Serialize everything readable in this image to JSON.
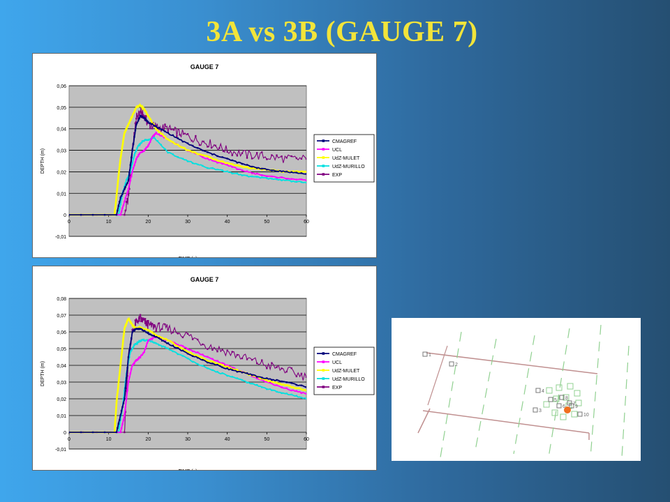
{
  "slide": {
    "title": "3A vs 3B   (GAUGE 7)"
  },
  "chart_data": [
    {
      "type": "line",
      "title": "GAUGE 7",
      "xlabel": "TIME (s)",
      "ylabel": "DEPTH (m)",
      "xlim": [
        0,
        60
      ],
      "ylim": [
        -0.01,
        0.06
      ],
      "xticks": [
        "0",
        "10",
        "20",
        "30",
        "40",
        "50",
        "60"
      ],
      "yticks": [
        "-0,01",
        "0",
        "0,01",
        "0,02",
        "0,03",
        "0,04",
        "0,05",
        "0,06"
      ],
      "grid": true,
      "legend": "right",
      "series": [
        {
          "name": "CMAGREF",
          "color": "#00007a",
          "marker": "+",
          "x": [
            0,
            12,
            13,
            14,
            15,
            16,
            17,
            18,
            19,
            20,
            22,
            25,
            30,
            35,
            40,
            45,
            50,
            55,
            60
          ],
          "y": [
            0,
            0,
            0.008,
            0.012,
            0.016,
            0.03,
            0.042,
            0.046,
            0.045,
            0.043,
            0.041,
            0.038,
            0.033,
            0.029,
            0.026,
            0.023,
            0.021,
            0.02,
            0.019
          ]
        },
        {
          "name": "UCL",
          "color": "#ff00ff",
          "marker": "s",
          "x": [
            0,
            13,
            14,
            15,
            16,
            17,
            18,
            19,
            20,
            21,
            22,
            25,
            30,
            35,
            40,
            45,
            50,
            55,
            60
          ],
          "y": [
            0,
            0,
            0.006,
            0.012,
            0.02,
            0.026,
            0.029,
            0.03,
            0.032,
            0.036,
            0.038,
            0.035,
            0.03,
            0.026,
            0.023,
            0.02,
            0.018,
            0.017,
            0.016
          ]
        },
        {
          "name": "UdZ-MULET",
          "color": "#ffff00",
          "marker": "^",
          "x": [
            0,
            11.5,
            12.5,
            13,
            14,
            15,
            16,
            17,
            18,
            19,
            20,
            22,
            25,
            30,
            35,
            40,
            45,
            50,
            55,
            60
          ],
          "y": [
            0,
            0,
            0.018,
            0.026,
            0.038,
            0.042,
            0.046,
            0.05,
            0.051,
            0.049,
            0.046,
            0.04,
            0.035,
            0.03,
            0.027,
            0.024,
            0.022,
            0.021,
            0.02,
            0.02
          ]
        },
        {
          "name": "UdZ-MURILLO",
          "color": "#00e0e0",
          "marker": "x",
          "x": [
            0,
            12.5,
            13.5,
            14.5,
            15.5,
            16.5,
            17.5,
            18.5,
            19.5,
            20.5,
            21.5,
            25,
            30,
            35,
            40,
            45,
            50,
            55,
            60
          ],
          "y": [
            0,
            0,
            0.01,
            0.016,
            0.02,
            0.028,
            0.032,
            0.034,
            0.035,
            0.035,
            0.036,
            0.029,
            0.025,
            0.022,
            0.02,
            0.018,
            0.017,
            0.016,
            0.015
          ]
        },
        {
          "name": "EXP",
          "color": "#800080",
          "marker": "|",
          "x": [
            0,
            14,
            15,
            16,
            17,
            18,
            19,
            20,
            22,
            25,
            28,
            32,
            36,
            40,
            45,
            50,
            55,
            60
          ],
          "y": [
            0,
            0,
            0.008,
            0.03,
            0.045,
            0.048,
            0.046,
            0.042,
            0.041,
            0.04,
            0.038,
            0.035,
            0.033,
            0.03,
            0.028,
            0.027,
            0.026,
            0.026
          ]
        }
      ]
    },
    {
      "type": "line",
      "title": "GAUGE 7",
      "xlabel": "TIME (s)",
      "ylabel": "DEPTH (m)",
      "xlim": [
        0,
        60
      ],
      "ylim": [
        -0.01,
        0.08
      ],
      "xticks": [
        "0",
        "10",
        "20",
        "30",
        "40",
        "50",
        "60"
      ],
      "yticks": [
        "-0,01",
        "0",
        "0,01",
        "0,02",
        "0,03",
        "0,04",
        "0,05",
        "0,06",
        "0,07",
        "0,08"
      ],
      "grid": true,
      "legend": "right",
      "series": [
        {
          "name": "CMAGREF",
          "color": "#00007a",
          "marker": "+",
          "x": [
            0,
            12,
            13,
            14,
            15,
            16,
            17,
            18,
            20,
            22,
            25,
            30,
            35,
            40,
            45,
            50,
            55,
            60
          ],
          "y": [
            0,
            0,
            0.01,
            0.02,
            0.045,
            0.06,
            0.062,
            0.062,
            0.059,
            0.057,
            0.053,
            0.047,
            0.042,
            0.038,
            0.035,
            0.032,
            0.03,
            0.027
          ]
        },
        {
          "name": "UCL",
          "color": "#ff00ff",
          "marker": "s",
          "x": [
            0,
            13,
            14,
            15,
            16,
            17,
            18,
            19,
            20,
            22,
            25,
            30,
            35,
            40,
            45,
            50,
            55,
            60
          ],
          "y": [
            0,
            0,
            0.01,
            0.03,
            0.04,
            0.043,
            0.045,
            0.048,
            0.055,
            0.057,
            0.055,
            0.05,
            0.045,
            0.04,
            0.035,
            0.03,
            0.026,
            0.023
          ]
        },
        {
          "name": "UdZ-MULET",
          "color": "#ffff00",
          "marker": "^",
          "x": [
            0,
            11.5,
            12,
            13,
            14,
            15,
            16,
            17,
            18,
            20,
            22,
            25,
            30,
            35,
            40,
            45,
            50,
            55,
            60
          ],
          "y": [
            0,
            0,
            0.018,
            0.04,
            0.062,
            0.068,
            0.064,
            0.062,
            0.063,
            0.061,
            0.058,
            0.055,
            0.048,
            0.043,
            0.039,
            0.035,
            0.031,
            0.028,
            0.025
          ]
        },
        {
          "name": "UdZ-MURILLO",
          "color": "#00e0e0",
          "marker": "x",
          "x": [
            0,
            12.5,
            13.5,
            14.5,
            15.5,
            16.5,
            17.5,
            18.5,
            20,
            22,
            25,
            30,
            35,
            40,
            45,
            50,
            55,
            60
          ],
          "y": [
            0,
            0,
            0.015,
            0.035,
            0.048,
            0.052,
            0.054,
            0.055,
            0.055,
            0.053,
            0.05,
            0.044,
            0.038,
            0.034,
            0.03,
            0.026,
            0.023,
            0.02
          ]
        },
        {
          "name": "EXP",
          "color": "#800080",
          "marker": "|",
          "x": [
            0,
            14,
            15,
            16,
            17,
            18,
            19,
            20,
            22,
            25,
            30,
            35,
            40,
            45,
            50,
            55,
            60
          ],
          "y": [
            0,
            0,
            0.045,
            0.06,
            0.066,
            0.068,
            0.066,
            0.064,
            0.063,
            0.062,
            0.058,
            0.052,
            0.048,
            0.044,
            0.04,
            0.037,
            0.033
          ]
        }
      ]
    }
  ],
  "site_map": {
    "labels": [
      "1",
      "2",
      "3",
      "4",
      "5",
      "6",
      "7",
      "8",
      "9",
      "10"
    ],
    "highlight_color": "#f07020",
    "line_color": "#c09090",
    "marker_color": "#90d090"
  }
}
